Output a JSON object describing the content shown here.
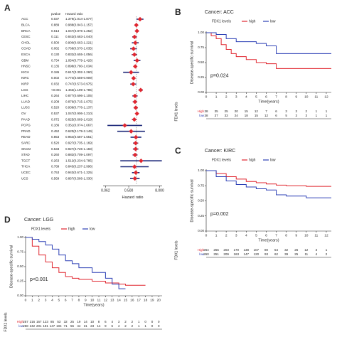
{
  "chart_data": [
    {
      "type": "forest",
      "panel": "A",
      "pvalue_header": "pvalue",
      "hr_header": "Hazard ratio",
      "xlabel": "Hazard ratio",
      "categories": [
        "ACC",
        "BLCA",
        "BRCA",
        "CESC",
        "CHOL",
        "COAD",
        "ESCA",
        "GBM",
        "HNSC",
        "KICH",
        "KIRC",
        "KIRP",
        "LGG",
        "LIHC",
        "LUAD",
        "LUSC",
        "OV",
        "PAAD",
        "PCPG",
        "PRAD",
        "READ",
        "SARC",
        "SKCM",
        "STAD",
        "TGCT",
        "THCA",
        "UCEC",
        "UCS"
      ],
      "pvalues": [
        "0.037",
        "0.889",
        "0.613",
        "0.111",
        "0.500",
        "0.082",
        "0.130",
        "0.734",
        "0.135",
        "0.186",
        "0.002",
        "0.032",
        "<0.001",
        "0.264",
        "0.208",
        "0.520",
        "0.537",
        "0.072",
        "0.186",
        "0.452",
        "0.853",
        "0.520",
        "0.533",
        "0.260",
        "0.263",
        "0.789",
        "0.753",
        "0.569"
      ],
      "hr": [
        1.379,
        0.988,
        1.047,
        0.843,
        0.9,
        0.768,
        0.832,
        1.054,
        0.898,
        0.617,
        0.774,
        0.747,
        1.463,
        0.877,
        0.876,
        0.939,
        1.047,
        0.825,
        0.351,
        0.62,
        0.954,
        0.927,
        0.927,
        0.882,
        1.512,
        0.843,
        0.943,
        0.867
      ],
      "lo": [
        1.014,
        0.843,
        0.876,
        0.683,
        0.663,
        0.57,
        0.655,
        0.779,
        0.78,
        0.302,
        0.659,
        0.573,
        1.199,
        0.696,
        0.715,
        0.776,
        0.906,
        0.669,
        0.074,
        0.179,
        0.587,
        0.735,
        0.726,
        0.709,
        0.234,
        0.237,
        0.671,
        0.566
      ],
      "hi": [
        1.877,
        1.157,
        1.252,
        1.04,
        1.221,
        1.035,
        1.056,
        1.426,
        1.034,
        1.26,
        0.909,
        0.975,
        1.785,
        1.105,
        1.075,
        1.137,
        1.21,
        1.018,
        1.667,
        2.149,
        1.551,
        1.169,
        1.183,
        1.097,
        9.785,
        2.996,
        1.325,
        1.33
      ],
      "hr_labels": [
        "1.379(1.014-1.877)",
        "0.988(0.843-1.157)",
        "1.047(0.876-1.252)",
        "0.843(0.683-1.040)",
        "0.900(0.663-1.221)",
        "0.768(0.570-1.035)",
        "0.832(0.655-1.056)",
        "1.054(0.779-1.426)",
        "0.898(0.780-1.034)",
        "0.617(0.302-1.260)",
        "0.774(0.659-0.909)",
        "0.747(0.573-0.975)",
        "1.463(1.199-1.785)",
        "0.877(0.696-1.105)",
        "0.876(0.715-1.075)",
        "0.939(0.776-1.137)",
        "1.047(0.906-1.210)",
        "0.825(0.669-1.018)",
        "0.351(0.074-1.667)",
        "0.620(0.179-2.149)",
        "0.954(0.587-1.551)",
        "0.927(0.735-1.169)",
        "0.927(0.726-1.183)",
        "0.882(0.709-1.097)",
        "1.512(0.234-9.785)",
        "0.843(0.237-2.996)",
        "0.943(0.671-1.325)",
        "0.867(0.566-1.330)"
      ],
      "xlim": [
        0.05,
        10
      ],
      "xlog": true,
      "ref": 1,
      "xticks": [
        0.062,
        {
          "value": 0.5,
          "label": "0.500"
        },
        {
          "value": 8,
          "label": "8.000"
        }
      ],
      "point_color": "#e0262f",
      "ci_color": "#1f2a7a"
    },
    {
      "type": "km",
      "panel": "B",
      "title": "Cancer: ACC",
      "legend_title": "FDX1 levels",
      "annotation": "p=0.024",
      "xlabel": "Time(years)",
      "ylabel": "Disease-specific survival",
      "xlim": [
        0,
        12.5
      ],
      "ylim": [
        0,
        1
      ],
      "xticks": [
        0,
        1,
        2,
        3,
        4,
        5,
        6,
        7,
        8,
        9,
        10,
        11,
        12
      ],
      "yticks": [
        {
          "value": 0,
          "label": "0.00"
        },
        {
          "value": 0.25,
          "label": "0.25"
        },
        {
          "value": 0.5,
          "label": "0.50"
        },
        {
          "value": 0.75,
          "label": "0.75"
        },
        {
          "value": 1,
          "label": "1.00"
        }
      ],
      "series": [
        {
          "name": "high",
          "color": "#e0262f",
          "x": [
            0,
            0.5,
            1,
            1.5,
            2,
            2.5,
            3,
            4,
            5,
            6,
            7,
            12.5
          ],
          "values": [
            1,
            0.95,
            0.9,
            0.8,
            0.72,
            0.65,
            0.6,
            0.55,
            0.5,
            0.48,
            0.4,
            0.4
          ]
        },
        {
          "name": "low",
          "color": "#2b3fb5",
          "x": [
            0,
            1,
            2,
            3,
            4,
            5,
            6,
            7,
            12.5
          ],
          "values": [
            1,
            0.97,
            0.9,
            0.85,
            0.85,
            0.82,
            0.78,
            0.65,
            0.65
          ]
        }
      ],
      "risk_table": {
        "title": "FDX1 levels",
        "rows": [
          {
            "name": "High",
            "color": "#e0262f",
            "values": [
              38,
              35,
              25,
              20,
              15,
              12,
              7,
              6,
              3,
              3,
              2,
              1,
              1
            ]
          },
          {
            "name": "low",
            "color": "#2b3fb5",
            "values": [
              38,
              37,
              33,
              24,
              18,
              15,
              12,
              6,
              5,
              3,
              3,
              1,
              1
            ]
          }
        ]
      }
    },
    {
      "type": "km",
      "panel": "C",
      "title": "Cancer: KIRC",
      "legend_title": "FDX1 levels",
      "annotation": "p=0.002",
      "xlabel": "Time(years)",
      "ylabel": "Disease-specific survival",
      "xlim": [
        0,
        12.5
      ],
      "ylim": [
        0,
        1
      ],
      "xticks": [
        0,
        1,
        2,
        3,
        4,
        5,
        6,
        7,
        8,
        9,
        10,
        11,
        12
      ],
      "yticks": [
        {
          "value": 0,
          "label": "0.00"
        },
        {
          "value": 0.25,
          "label": "0.25"
        },
        {
          "value": 0.5,
          "label": "0.50"
        },
        {
          "value": 0.75,
          "label": "0.75"
        },
        {
          "value": 1,
          "label": "1.00"
        }
      ],
      "series": [
        {
          "name": "high",
          "color": "#e0262f",
          "x": [
            0,
            1,
            2,
            3,
            4,
            5,
            6,
            7,
            8,
            10,
            12.5
          ],
          "values": [
            1,
            0.95,
            0.9,
            0.86,
            0.82,
            0.8,
            0.78,
            0.76,
            0.75,
            0.74,
            0.74
          ]
        },
        {
          "name": "low",
          "color": "#2b3fb5",
          "x": [
            0,
            1,
            2,
            3,
            4,
            5,
            6,
            7,
            8,
            10,
            12.5
          ],
          "values": [
            1,
            0.9,
            0.83,
            0.77,
            0.73,
            0.7,
            0.68,
            0.6,
            0.58,
            0.55,
            0.55
          ]
        }
      ],
      "risk_table": {
        "title": "FDX1 levels",
        "rows": [
          {
            "name": "High",
            "color": "#e0262f",
            "values": [
              264,
              255,
              203,
              170,
              138,
              107,
              80,
              54,
              32,
              26,
              12,
              3,
              1
            ]
          },
          {
            "name": "low",
            "color": "#2b3fb5",
            "values": [
              260,
              251,
              209,
              163,
              147,
              120,
              93,
              62,
              39,
              25,
              11,
              4,
              2
            ]
          }
        ]
      }
    },
    {
      "type": "km",
      "panel": "D",
      "title": "Cancer: LGG",
      "legend_title": "FDX1 levels",
      "annotation": "p<0.001",
      "xlabel": "Time(years)",
      "ylabel": "Disease-specific survival",
      "xlim": [
        0,
        20.5
      ],
      "ylim": [
        0,
        1
      ],
      "xticks": [
        0,
        1,
        2,
        3,
        4,
        5,
        6,
        7,
        8,
        9,
        10,
        11,
        12,
        13,
        14,
        15,
        16,
        17,
        18,
        19,
        20
      ],
      "yticks": [
        {
          "value": 0,
          "label": "0.00"
        },
        {
          "value": 0.25,
          "label": "0.25"
        },
        {
          "value": 0.5,
          "label": "0.50"
        },
        {
          "value": 0.75,
          "label": "0.75"
        },
        {
          "value": 1,
          "label": "1.00"
        }
      ],
      "series": [
        {
          "name": "high",
          "color": "#e0262f",
          "x": [
            0,
            1,
            2,
            3,
            4,
            5,
            6,
            7,
            8,
            10,
            12,
            14,
            15,
            17,
            18
          ],
          "values": [
            1,
            0.85,
            0.7,
            0.58,
            0.48,
            0.4,
            0.33,
            0.3,
            0.28,
            0.25,
            0.22,
            0.2,
            0.18,
            0.18,
            0.18
          ]
        },
        {
          "name": "low",
          "color": "#2b3fb5",
          "x": [
            0,
            1,
            2,
            3,
            4,
            5,
            6,
            7,
            8,
            10,
            12,
            13,
            14,
            15
          ],
          "values": [
            1,
            0.97,
            0.93,
            0.87,
            0.8,
            0.7,
            0.6,
            0.55,
            0.48,
            0.4,
            0.3,
            0.2,
            0.12,
            0.12
          ]
        }
      ],
      "risk_table": {
        "title": "FDX1 levels",
        "rows": [
          {
            "name": "High",
            "color": "#e0262f",
            "values": [
              257,
              216,
              167,
              123,
              85,
              53,
              32,
              25,
              19,
              14,
              10,
              8,
              6,
              4,
              3,
              2,
              2,
              1,
              0,
              0,
              0
            ]
          },
          {
            "name": "low",
            "color": "#2b3fb5",
            "values": [
              258,
              242,
              201,
              181,
              147,
              104,
              71,
              56,
              44,
              31,
              23,
              14,
              9,
              6,
              4,
              2,
              2,
              1,
              1,
              0,
              0
            ]
          }
        ]
      }
    }
  ]
}
